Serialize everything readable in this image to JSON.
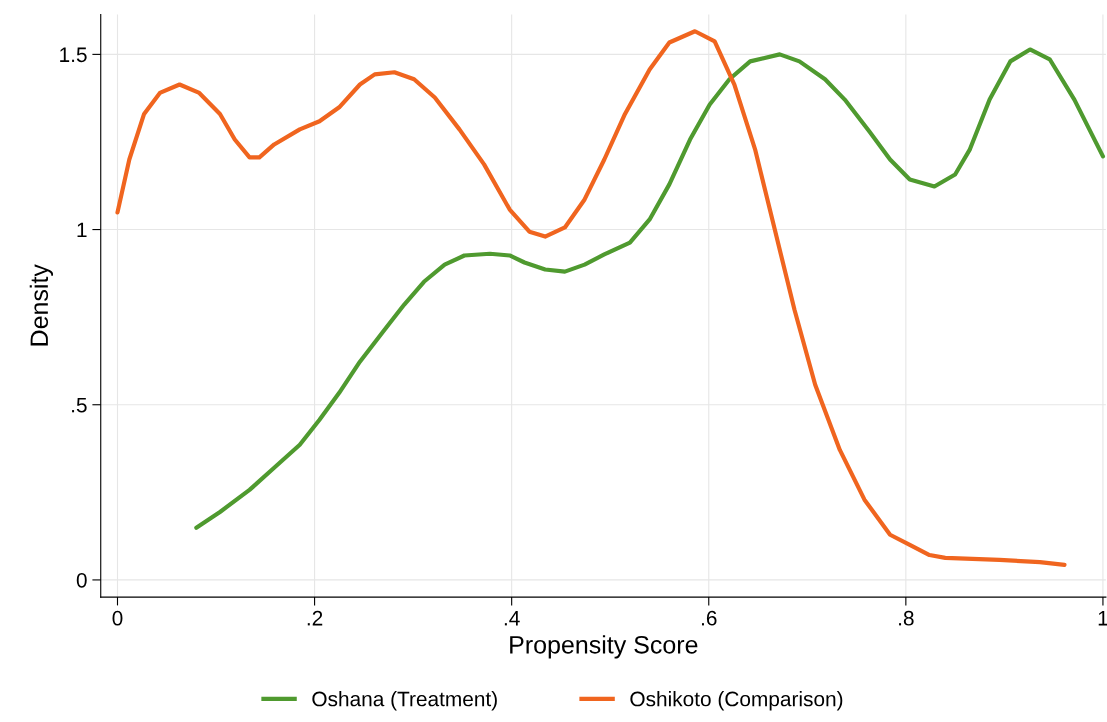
{
  "chart_data": {
    "type": "line",
    "xlabel": "Propensity Score",
    "ylabel": "Density",
    "xlim": [
      -0.017,
      1.003
    ],
    "ylim": [
      -0.049,
      1.614
    ],
    "xticks": [
      0,
      {
        "value": 0.2,
        "label": ".2"
      },
      {
        "value": 0.4,
        "label": ".4"
      },
      {
        "value": 0.6,
        "label": ".6"
      },
      {
        "value": 0.8,
        "label": ".8"
      },
      1
    ],
    "yticks": [
      0,
      {
        "value": 0.5,
        "label": ".5"
      },
      1,
      1.5
    ],
    "grid": true,
    "legend": "bottom",
    "line_style": "solid",
    "marker": "none",
    "series": [
      {
        "name": "Oshana (Treatment)",
        "color": "#4f9a2f",
        "x": [
          0.08,
          0.104,
          0.134,
          0.159,
          0.185,
          0.205,
          0.225,
          0.246,
          0.271,
          0.291,
          0.311,
          0.332,
          0.352,
          0.378,
          0.398,
          0.413,
          0.434,
          0.454,
          0.474,
          0.494,
          0.52,
          0.54,
          0.56,
          0.581,
          0.601,
          0.621,
          0.642,
          0.672,
          0.692,
          0.718,
          0.738,
          0.763,
          0.784,
          0.804,
          0.829,
          0.85,
          0.865,
          0.885,
          0.906,
          0.926,
          0.946,
          0.971,
          1.0
        ],
        "values": [
          0.149,
          0.194,
          0.257,
          0.32,
          0.386,
          0.457,
          0.534,
          0.623,
          0.714,
          0.786,
          0.851,
          0.9,
          0.926,
          0.931,
          0.926,
          0.906,
          0.886,
          0.88,
          0.9,
          0.929,
          0.963,
          1.029,
          1.129,
          1.257,
          1.357,
          1.429,
          1.48,
          1.5,
          1.48,
          1.429,
          1.371,
          1.28,
          1.2,
          1.143,
          1.123,
          1.157,
          1.229,
          1.371,
          1.48,
          1.514,
          1.486,
          1.371,
          1.209
        ]
      },
      {
        "name": "Oshikoto (Comparison)",
        "color": "#f0651f",
        "x": [
          0.0,
          0.012,
          0.027,
          0.043,
          0.063,
          0.083,
          0.104,
          0.119,
          0.134,
          0.144,
          0.159,
          0.185,
          0.205,
          0.225,
          0.246,
          0.261,
          0.281,
          0.301,
          0.322,
          0.347,
          0.372,
          0.398,
          0.418,
          0.434,
          0.454,
          0.474,
          0.494,
          0.515,
          0.54,
          0.56,
          0.586,
          0.606,
          0.626,
          0.647,
          0.667,
          0.687,
          0.708,
          0.733,
          0.758,
          0.784,
          0.804,
          0.824,
          0.84,
          0.895,
          0.936,
          0.961
        ],
        "values": [
          1.049,
          1.2,
          1.33,
          1.39,
          1.414,
          1.39,
          1.33,
          1.257,
          1.206,
          1.206,
          1.243,
          1.286,
          1.309,
          1.349,
          1.414,
          1.443,
          1.449,
          1.429,
          1.377,
          1.286,
          1.186,
          1.057,
          0.994,
          0.98,
          1.006,
          1.086,
          1.2,
          1.33,
          1.457,
          1.534,
          1.566,
          1.537,
          1.414,
          1.229,
          1.0,
          0.771,
          0.557,
          0.371,
          0.229,
          0.129,
          0.1,
          0.071,
          0.063,
          0.057,
          0.051,
          0.043
        ]
      }
    ]
  }
}
